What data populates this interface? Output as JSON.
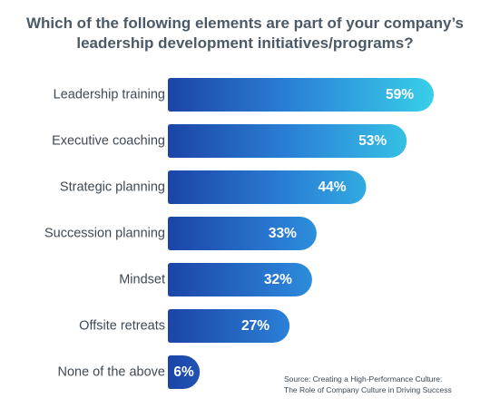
{
  "title_lines": [
    "Which of the following elements are part of your company’s",
    "leadership development initiatives/programs?"
  ],
  "source_lines": [
    "Source: Creating a High-Performance Culture:",
    "The Role of Company Culture in Driving Success"
  ],
  "colors": {
    "title": "#4b5a66",
    "label": "#3d4a56",
    "bar_dark": "#1c44a8",
    "bar_mid": "#2a7fd6",
    "bar_light": "#38cfe8",
    "value_text": "#ffffff"
  },
  "chart_data": {
    "type": "bar",
    "orientation": "horizontal",
    "title": "Which of the following elements are part of your company’s leadership development initiatives/programs?",
    "categories": [
      "Leadership training",
      "Executive coaching",
      "Strategic planning",
      "Succession planning",
      "Mindset",
      "Offsite retreats",
      "None of the above"
    ],
    "values": [
      59,
      53,
      44,
      33,
      32,
      27,
      6
    ],
    "value_labels": [
      "59%",
      "53%",
      "44%",
      "33%",
      "32%",
      "27%",
      "6%"
    ],
    "xlim": [
      0,
      59
    ],
    "grid": false,
    "legend": "none",
    "axes_visible": false
  }
}
